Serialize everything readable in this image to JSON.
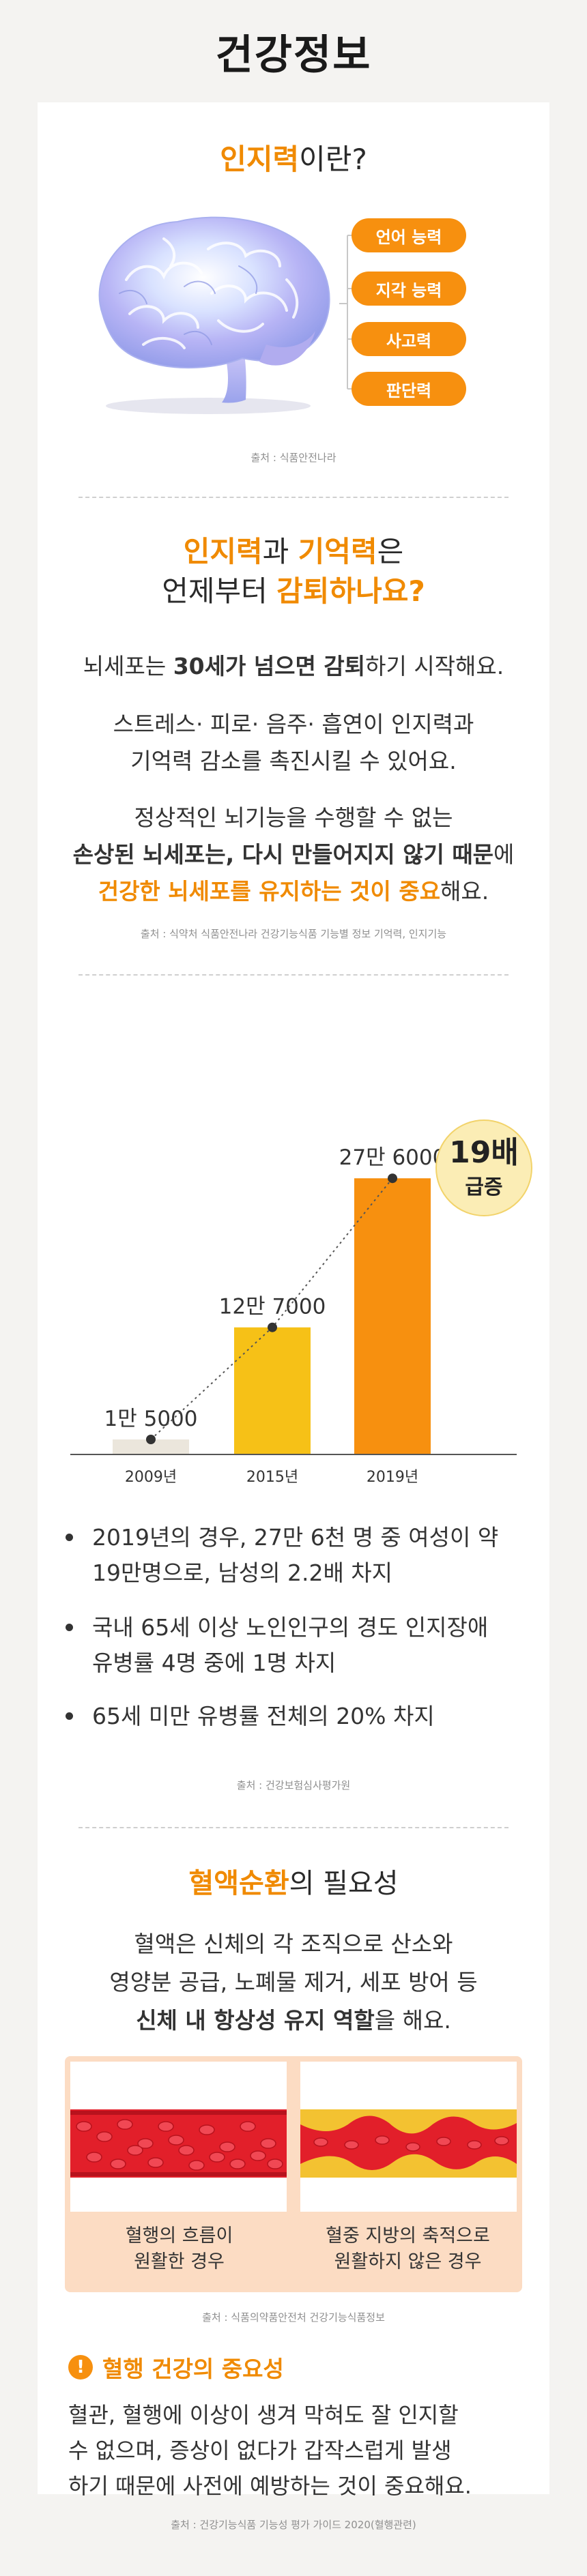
{
  "header": {
    "title": "건강정보"
  },
  "section1": {
    "title_highlight": "인지력",
    "title_rest": "이란?",
    "abilities": [
      "언어 능력",
      "지각 능력",
      "사고력",
      "판단력"
    ],
    "source": "출처 : 식품안전나라"
  },
  "section2": {
    "title_hl1": "인지력",
    "title_mid": "과 ",
    "title_hl2": "기억력",
    "title_end1": "은",
    "title_line2_plain": "언제부터 ",
    "title_line2_hl": "감퇴하나요?",
    "p1_a": "뇌세포는 ",
    "p1_bold1": "30세가 넘으면 감퇴",
    "p1_b": "하기 시작해요.",
    "p2_line1": "스트레스· 피로· 음주· 흡연이 인지력과",
    "p2_line2": "기억력 감소를 촉진시킬 수 있어요.",
    "p3_line1": "정상적인 뇌기능을 수행할 수 없는",
    "p3_bold": "손상된 뇌세포는, 다시 만들어지지 않기 때문",
    "p3_after": "에",
    "p3_orange": "건강한 뇌세포를 유지하는 것이 중요",
    "p3_end": "해요.",
    "source": "출처 : 식약처 식품안전나라 건강기능식품 기능별 정보 기억력, 인지기능"
  },
  "chart_data": {
    "type": "bar",
    "categories": [
      "2009년",
      "2015년",
      "2019년"
    ],
    "values": [
      15000,
      127000,
      276000
    ],
    "value_labels": [
      "1만 5000",
      "12만 7000",
      "27만 6000"
    ],
    "colors": [
      "#ebe6dc",
      "#f6c117",
      "#f7900f"
    ],
    "trend_line": "dotted",
    "ylim": [
      0,
      300000
    ],
    "badge_number": "19배",
    "badge_text": "급증"
  },
  "section3": {
    "bullets": [
      [
        "2019년의 경우, 27만 6천 명 중 여성이 약",
        "19만명으로, 남성의 2.2배 차지"
      ],
      [
        "국내 65세 이상 노인인구의 경도 인지장애",
        "유병률 4명 중에 1명 차지"
      ],
      [
        "65세 미만 유병률 전체의 20% 차지"
      ]
    ],
    "source": "출처 : 건강보험심사평가원"
  },
  "section4": {
    "title_hl": "혈액순환",
    "title_rest": "의 필요성",
    "p_line1": "혈액은 신체의 각 조직으로 산소와",
    "p_line2": "영양분 공급, 노폐물 제거, 세포 방어 등",
    "p_bold": "신체 내 항상성 유지 역할",
    "p_end": "을 해요.",
    "caption_left_1": "혈행의 흐름이",
    "caption_left_2": "원활한 경우",
    "caption_right_1": "혈중 지방의 축적으로",
    "caption_right_2": "원활하지 않은 경우",
    "source": "출처 : 식품의약품안전처 건강기능식품정보"
  },
  "section5": {
    "alert_icon": "!",
    "title": "혈행 건강의 중요성",
    "lines": [
      "혈관, 혈행에 이상이 생겨 막혀도 잘 인지할",
      "수 없으며, 증상이 없다가 갑작스럽게 발생",
      "하기 때문에 사전에 예방하는 것이 중요해요."
    ],
    "source": "출처 : 건강기능식품 기능성 평가 가이드 2020(혈행관련)"
  }
}
